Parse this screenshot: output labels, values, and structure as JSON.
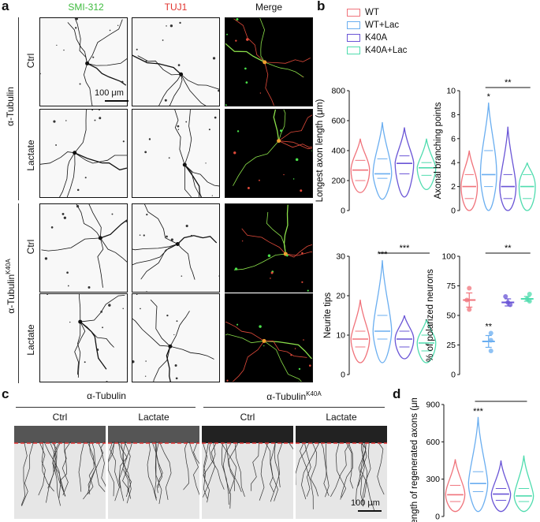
{
  "panels": {
    "a": "a",
    "b": "b",
    "c": "c",
    "d": "d"
  },
  "panel_a": {
    "col_headers": [
      "SMI-312",
      "TUJ1",
      "Merge"
    ],
    "col_header_colors": [
      "#3dbb3d",
      "#e0322d",
      "#111111"
    ],
    "group_labels": [
      "α-Tubulin",
      "α-Tubulin"
    ],
    "group_label_superscript": [
      "",
      "K40A"
    ],
    "row_labels": [
      "Ctrl",
      "Lactate",
      "Ctrl",
      "Lactate"
    ],
    "scale_bar": "100 μm"
  },
  "legend": {
    "items": [
      {
        "label": "WT",
        "color": "#f0737b"
      },
      {
        "label": "WT+Lac",
        "color": "#6aaef0"
      },
      {
        "label": "K40A",
        "color": "#6a55d6"
      },
      {
        "label": "K40A+Lac",
        "color": "#4fdcae"
      }
    ]
  },
  "panel_c": {
    "group_labels": [
      "α-Tubulin",
      "α-Tubulin"
    ],
    "group_label_superscript": [
      "",
      "K40A"
    ],
    "col_labels": [
      "Ctrl",
      "Lactate",
      "Ctrl",
      "Lactate"
    ],
    "scale_bar": "100 μm"
  },
  "chart_data": [
    {
      "type": "violin",
      "ylabel": "Longest axon length (μm)",
      "ylim": [
        0,
        800
      ],
      "yticks": [
        "0",
        "200",
        "400",
        "600",
        "800"
      ],
      "series": [
        {
          "name": "WT",
          "min": 120,
          "q1": 200,
          "median": 270,
          "q3": 335,
          "max": 480
        },
        {
          "name": "WT+Lac",
          "min": 75,
          "q1": 215,
          "median": 245,
          "q3": 345,
          "max": 590
        },
        {
          "name": "K40A",
          "min": 90,
          "q1": 245,
          "median": 315,
          "q3": 365,
          "max": 555
        },
        {
          "name": "K40A+Lac",
          "min": 140,
          "q1": 235,
          "median": 285,
          "q3": 320,
          "max": 480
        }
      ],
      "annotations": []
    },
    {
      "type": "violin",
      "ylabel": "Axonal branching points",
      "ylim": [
        0,
        10
      ],
      "yticks": [
        "0",
        "2",
        "4",
        "6",
        "8",
        "10"
      ],
      "series": [
        {
          "name": "WT",
          "min": 0,
          "q1": 1,
          "median": 2,
          "q3": 3,
          "max": 5
        },
        {
          "name": "WT+Lac",
          "min": 0,
          "q1": 2,
          "median": 3,
          "q3": 5,
          "max": 9
        },
        {
          "name": "K40A",
          "min": 0,
          "q1": 1,
          "median": 2,
          "q3": 3,
          "max": 7
        },
        {
          "name": "K40A+Lac",
          "min": 0,
          "q1": 1,
          "median": 2,
          "q3": 3,
          "max": 4
        }
      ],
      "annotations": [
        {
          "text": "*",
          "over": 1
        },
        {
          "text": "**",
          "from": 1,
          "to": 3
        }
      ]
    },
    {
      "type": "violin",
      "ylabel": "Neurite tips",
      "ylim": [
        0,
        30
      ],
      "yticks": [
        "0",
        "10",
        "20",
        "30"
      ],
      "series": [
        {
          "name": "WT",
          "min": 3,
          "q1": 7,
          "median": 9,
          "q3": 11,
          "max": 19
        },
        {
          "name": "WT+Lac",
          "min": 3,
          "q1": 9,
          "median": 11,
          "q3": 15,
          "max": 29
        },
        {
          "name": "K40A",
          "min": 4,
          "q1": 7,
          "median": 9,
          "q3": 11,
          "max": 15
        },
        {
          "name": "K40A+Lac",
          "min": 3,
          "q1": 6,
          "median": 8,
          "q3": 10,
          "max": 14
        }
      ],
      "annotations": [
        {
          "text": "***",
          "over": 1
        },
        {
          "text": "***",
          "from": 1,
          "to": 3
        }
      ]
    },
    {
      "type": "scatter",
      "ylabel": "% of polarized neurons",
      "ylim": [
        0,
        100
      ],
      "yticks": [
        "0",
        "25",
        "50",
        "75",
        "100"
      ],
      "series": [
        {
          "name": "WT",
          "mean": 63,
          "sem": 6,
          "points": [
            73,
            63,
            55
          ]
        },
        {
          "name": "WT+Lac",
          "mean": 28,
          "sem": 5,
          "points": [
            35,
            29,
            20
          ]
        },
        {
          "name": "K40A",
          "mean": 61,
          "sem": 3,
          "points": [
            66,
            61,
            59
          ]
        },
        {
          "name": "K40A+Lac",
          "mean": 64,
          "sem": 2,
          "points": [
            68,
            64,
            62
          ]
        }
      ],
      "annotations": [
        {
          "text": "**",
          "over": 1
        },
        {
          "text": "**",
          "from": 1,
          "to": 3
        }
      ]
    },
    {
      "type": "violin",
      "ylabel": "Length of regenerated axons (μm)",
      "ylim": [
        0,
        900
      ],
      "yticks": [
        "0",
        "300",
        "600",
        "900"
      ],
      "series": [
        {
          "name": "WT",
          "min": 40,
          "q1": 120,
          "median": 175,
          "q3": 250,
          "max": 460
        },
        {
          "name": "WT+Lac",
          "min": 40,
          "q1": 200,
          "median": 265,
          "q3": 360,
          "max": 800
        },
        {
          "name": "K40A",
          "min": 40,
          "q1": 130,
          "median": 180,
          "q3": 225,
          "max": 450
        },
        {
          "name": "K40A+Lac",
          "min": 40,
          "q1": 120,
          "median": 165,
          "q3": 225,
          "max": 490
        }
      ],
      "annotations": [
        {
          "text": "***",
          "over": 1
        },
        {
          "text": "***",
          "from": 1,
          "to": 3
        }
      ]
    }
  ]
}
